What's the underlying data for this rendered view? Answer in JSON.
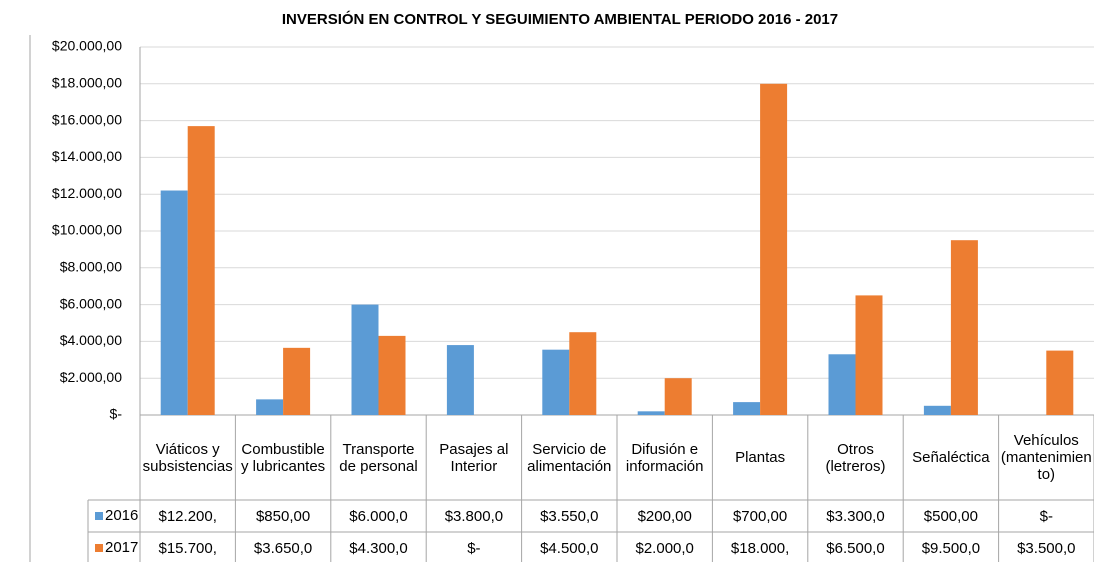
{
  "chart_data": {
    "type": "bar",
    "title": "INVERSIÓN EN CONTROL Y SEGUIMIENTO AMBIENTAL PERIODO 2016 - 2017",
    "categories": [
      "Viáticos y subsistencias",
      "Combustible y lubricantes",
      "Transporte de personal",
      "Pasajes al Interior",
      "Servicio de alimentación",
      "Difusión e información",
      "Plantas",
      "Otros (letreros)",
      "Señaléctica",
      "Vehículos (mantenimiento)"
    ],
    "series": [
      {
        "name": "2016",
        "color": "#5b9bd5",
        "values": [
          12200,
          850,
          6000,
          3800,
          3550,
          200,
          700,
          3300,
          500,
          0
        ],
        "value_labels": [
          "$12.200,",
          "$850,00",
          "$6.000,0",
          "$3.800,0",
          "$3.550,0",
          "$200,00",
          "$700,00",
          "$3.300,0",
          "$500,00",
          "$-"
        ]
      },
      {
        "name": "2017",
        "color": "#ed7d31",
        "values": [
          15700,
          3650,
          4300,
          0,
          4500,
          2000,
          18000,
          6500,
          9500,
          3500
        ],
        "value_labels": [
          "$15.700,",
          "$3.650,0",
          "$4.300,0",
          "$-",
          "$4.500,0",
          "$2.000,0",
          "$18.000,",
          "$6.500,0",
          "$9.500,0",
          "$3.500,0"
        ]
      }
    ],
    "ylim": [
      0,
      20000
    ],
    "yticks": [
      {
        "value": 0,
        "label": "$-"
      },
      {
        "value": 2000,
        "label": "$2.000,00"
      },
      {
        "value": 4000,
        "label": "$4.000,00"
      },
      {
        "value": 6000,
        "label": "$6.000,00"
      },
      {
        "value": 8000,
        "label": "$8.000,00"
      },
      {
        "value": 10000,
        "label": "$10.000,00"
      },
      {
        "value": 12000,
        "label": "$12.000,00"
      },
      {
        "value": 14000,
        "label": "$14.000,00"
      },
      {
        "value": 16000,
        "label": "$16.000,00"
      },
      {
        "value": 18000,
        "label": "$18.000,00"
      },
      {
        "value": 20000,
        "label": "$20.000,00"
      }
    ],
    "grid": true
  }
}
